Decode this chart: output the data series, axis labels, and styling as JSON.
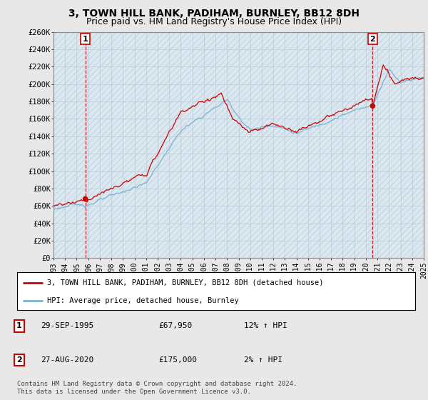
{
  "title": "3, TOWN HILL BANK, PADIHAM, BURNLEY, BB12 8DH",
  "subtitle": "Price paid vs. HM Land Registry's House Price Index (HPI)",
  "ylim": [
    0,
    260000
  ],
  "yticks": [
    0,
    20000,
    40000,
    60000,
    80000,
    100000,
    120000,
    140000,
    160000,
    180000,
    200000,
    220000,
    240000,
    260000
  ],
  "ytick_labels": [
    "£0",
    "£20K",
    "£40K",
    "£60K",
    "£80K",
    "£100K",
    "£120K",
    "£140K",
    "£160K",
    "£180K",
    "£200K",
    "£220K",
    "£240K",
    "£260K"
  ],
  "x_start_year": 1993,
  "x_end_year": 2025,
  "hpi_color": "#7ab3d4",
  "price_color": "#cc0000",
  "transaction1_x": 1995.75,
  "transaction1_price": 67950,
  "transaction1_hpi_pct": "12% ↑ HPI",
  "transaction1_date": "29-SEP-1995",
  "transaction2_x": 2020.583,
  "transaction2_price": 175000,
  "transaction2_hpi_pct": "2% ↑ HPI",
  "transaction2_date": "27-AUG-2020",
  "legend_label1": "3, TOWN HILL BANK, PADIHAM, BURNLEY, BB12 8DH (detached house)",
  "legend_label2": "HPI: Average price, detached house, Burnley",
  "footnote": "Contains HM Land Registry data © Crown copyright and database right 2024.\nThis data is licensed under the Open Government Licence v3.0.",
  "bg_color": "#e8e8e8",
  "plot_bg_color": "#dce8f0",
  "grid_color": "#b8ccd8",
  "hatch_color": "#c8d8e4",
  "title_fontsize": 10,
  "subtitle_fontsize": 9,
  "tick_fontsize": 7.5,
  "legend_fontsize": 7.5,
  "annotation_box_edgecolor": "#cc0000"
}
